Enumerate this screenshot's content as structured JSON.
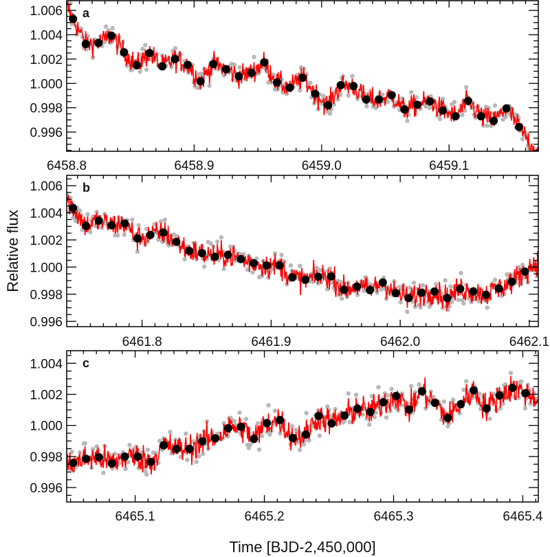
{
  "chart_data": [
    {
      "type": "scatter",
      "panel_label": "a",
      "xlim": [
        6458.8,
        6459.17
      ],
      "ylim": [
        0.99442,
        1.0068
      ],
      "xticks": [
        "6458.8",
        "6458.9",
        "6459.0",
        "6459.1"
      ],
      "xtick_values": [
        6458.8,
        6458.9,
        6459.0,
        6459.1
      ],
      "yticks": [
        "0.996",
        "0.998",
        "1.000",
        "1.002",
        "1.004",
        "1.006"
      ],
      "ytick_values": [
        0.996,
        0.998,
        1.0,
        1.002,
        1.004,
        1.006
      ],
      "binned_x_start": 6458.805,
      "binned_x_step": 0.01,
      "binned_y": [
        1.0053,
        1.00324,
        1.00333,
        1.00393,
        1.00256,
        1.00149,
        1.0025,
        1.0014,
        1.002,
        1.00153,
        1.00017,
        1.00158,
        1.00117,
        1.00059,
        1.00087,
        1.00173,
        1.00008,
        0.99965,
        1.00047,
        0.99914,
        0.9982,
        0.99985,
        0.99978,
        0.99867,
        0.99867,
        0.99903,
        0.99786,
        0.99824,
        0.99852,
        0.99777,
        0.9973,
        0.99856,
        0.9973,
        0.99692,
        0.99795,
        0.99641
      ]
    },
    {
      "type": "scatter",
      "panel_label": "b",
      "xlim": [
        6461.7416,
        6462.107
      ],
      "ylim": [
        0.99561,
        1.00676
      ],
      "xticks": [
        "6461.8",
        "6461.9",
        "6462.0",
        "6462.1"
      ],
      "xtick_values": [
        6461.8,
        6461.9,
        6462.0,
        6462.1
      ],
      "yticks": [
        "0.996",
        "0.998",
        "1.000",
        "1.002",
        "1.004",
        "1.006"
      ],
      "ytick_values": [
        0.996,
        0.998,
        1.0,
        1.002,
        1.004,
        1.006
      ],
      "binned_x_start": 6461.7465,
      "binned_x_step": 0.01,
      "binned_y": [
        1.00436,
        1.00304,
        1.00342,
        1.00308,
        1.00321,
        1.00211,
        1.00237,
        1.00255,
        1.00186,
        1.0012,
        1.00103,
        1.00076,
        1.0009,
        1.00059,
        1.00029,
        1.00012,
        1.00012,
        0.99924,
        0.99907,
        0.99929,
        0.99931,
        0.99833,
        0.99857,
        0.9983,
        0.99887,
        0.99809,
        0.99772,
        0.99811,
        0.9982,
        0.99772,
        0.9984,
        0.9982,
        0.99796,
        0.99843,
        0.99891,
        0.99967
      ]
    },
    {
      "type": "scatter",
      "panel_label": "c",
      "xlim": [
        6465.047,
        6465.412
      ],
      "ylim": [
        0.99507,
        1.00481
      ],
      "xticks": [
        "6465.1",
        "6465.2",
        "6465.3",
        "6465.4"
      ],
      "xtick_values": [
        6465.1,
        6465.2,
        6465.3,
        6465.4
      ],
      "yticks": [
        "0.996",
        "0.998",
        "1.000",
        "1.002",
        "1.004"
      ],
      "ytick_values": [
        0.996,
        0.998,
        1.0,
        1.002,
        1.004
      ],
      "binned_x_start": 6465.052,
      "binned_x_step": 0.01,
      "binned_y": [
        0.99758,
        0.99785,
        0.99795,
        0.99755,
        0.99799,
        0.99799,
        0.99765,
        0.99872,
        0.99849,
        0.99849,
        0.99898,
        0.99917,
        0.99982,
        0.99991,
        0.99914,
        1.00015,
        1.00035,
        0.99919,
        0.99941,
        1.00061,
        1.00013,
        1.00063,
        1.00108,
        1.00087,
        1.00149,
        1.0019,
        1.00102,
        1.0022,
        1.00145,
        1.00049,
        1.00137,
        1.00226,
        1.00109,
        1.00193,
        1.00242,
        1.00208
      ]
    }
  ],
  "ylabel": "Relative flux",
  "xlabel": "Time [BJD-2,450,000]",
  "colors": {
    "raw_points": "#b8b8b8",
    "raw_line": "#ff0000",
    "binned": "#000000",
    "axes": "#000000"
  }
}
